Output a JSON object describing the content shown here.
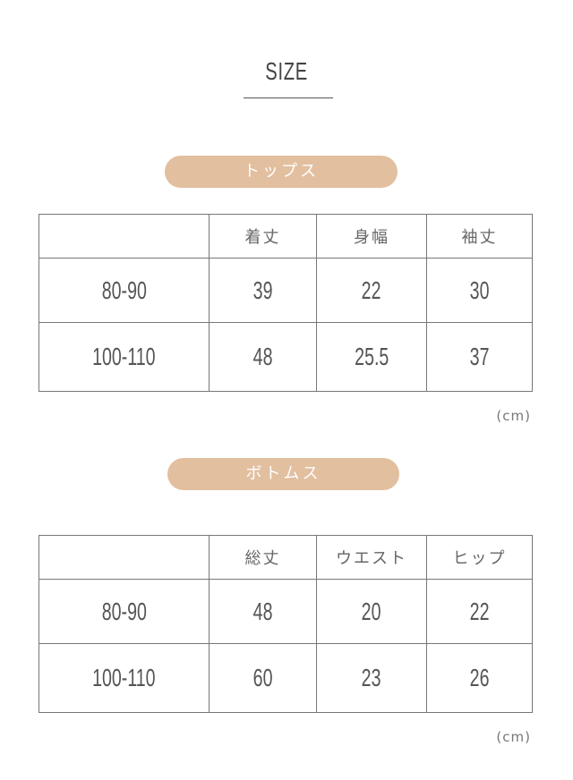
{
  "title": "SIZE",
  "tables": [
    {
      "label": "トップス",
      "headers": [
        "",
        "着丈",
        "身幅",
        "袖丈"
      ],
      "rows": [
        [
          "80-90",
          "39",
          "22",
          "30"
        ],
        [
          "100-110",
          "48",
          "25.5",
          "37"
        ]
      ],
      "unit": "(cm)"
    },
    {
      "label": "ボトムス",
      "headers": [
        "",
        "総丈",
        "ウエスト",
        "ヒップ"
      ],
      "rows": [
        [
          "80-90",
          "48",
          "20",
          "22"
        ],
        [
          "100-110",
          "60",
          "23",
          "26"
        ]
      ],
      "unit": "(cm)"
    }
  ],
  "colors": {
    "pill": "#e2bf9f",
    "border": "#777777",
    "text": "#555555"
  }
}
